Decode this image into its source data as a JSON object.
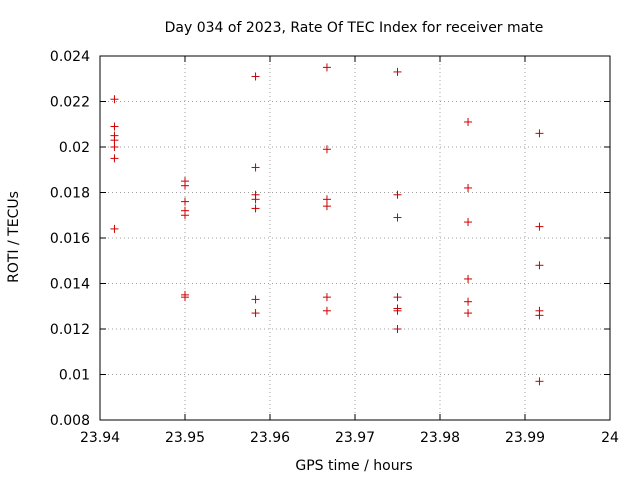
{
  "chart_data": {
    "type": "scatter",
    "title": "Day 034 of 2023, Rate Of TEC Index for receiver mate",
    "xlabel": "GPS time / hours",
    "ylabel": "ROTI / TECUs",
    "xlim": [
      23.94,
      24.0
    ],
    "ylim": [
      0.008,
      0.024
    ],
    "xticks": [
      23.94,
      23.95,
      23.96,
      23.97,
      23.98,
      23.99,
      24.0
    ],
    "xtick_labels": [
      "23.94",
      "23.95",
      "23.96",
      "23.97",
      "23.98",
      "23.99",
      "24"
    ],
    "yticks": [
      0.008,
      0.01,
      0.012,
      0.014,
      0.016,
      0.018,
      0.02,
      0.022,
      0.024
    ],
    "ytick_labels": [
      "0.008",
      "0.01",
      "0.012",
      "0.014",
      "0.016",
      "0.018",
      "0.02",
      "0.022",
      "0.024"
    ],
    "grid": true,
    "marker": "+",
    "marker_color": "#cc0000",
    "series": [
      {
        "name": "ROTI",
        "points": [
          [
            23.9417,
            0.0221
          ],
          [
            23.9417,
            0.0209
          ],
          [
            23.9417,
            0.0205
          ],
          [
            23.9417,
            0.0203
          ],
          [
            23.9417,
            0.02
          ],
          [
            23.9417,
            0.0195
          ],
          [
            23.9417,
            0.0164
          ],
          [
            23.95,
            0.0185
          ],
          [
            23.95,
            0.0183
          ],
          [
            23.95,
            0.0176
          ],
          [
            23.95,
            0.0172
          ],
          [
            23.95,
            0.017
          ],
          [
            23.95,
            0.0135
          ],
          [
            23.95,
            0.0134
          ],
          [
            23.9583,
            0.0231
          ],
          [
            23.9583,
            0.0191
          ],
          [
            23.9583,
            0.0179
          ],
          [
            23.9583,
            0.0177
          ],
          [
            23.9583,
            0.0173
          ],
          [
            23.9583,
            0.0133
          ],
          [
            23.9583,
            0.0127
          ],
          [
            23.9667,
            0.0235
          ],
          [
            23.9667,
            0.0199
          ],
          [
            23.9667,
            0.0177
          ],
          [
            23.9667,
            0.0174
          ],
          [
            23.9667,
            0.0134
          ],
          [
            23.9667,
            0.0128
          ],
          [
            23.975,
            0.0233
          ],
          [
            23.975,
            0.0179
          ],
          [
            23.975,
            0.0169
          ],
          [
            23.975,
            0.0134
          ],
          [
            23.975,
            0.0129
          ],
          [
            23.975,
            0.0128
          ],
          [
            23.975,
            0.012
          ],
          [
            23.9833,
            0.0211
          ],
          [
            23.9833,
            0.0182
          ],
          [
            23.9833,
            0.0167
          ],
          [
            23.9833,
            0.0142
          ],
          [
            23.9833,
            0.0132
          ],
          [
            23.9833,
            0.0127
          ],
          [
            23.9917,
            0.0206
          ],
          [
            23.9917,
            0.0165
          ],
          [
            23.9917,
            0.0148
          ],
          [
            23.9917,
            0.0128
          ],
          [
            23.9917,
            0.0126
          ],
          [
            23.9917,
            0.0097
          ]
        ]
      }
    ]
  }
}
